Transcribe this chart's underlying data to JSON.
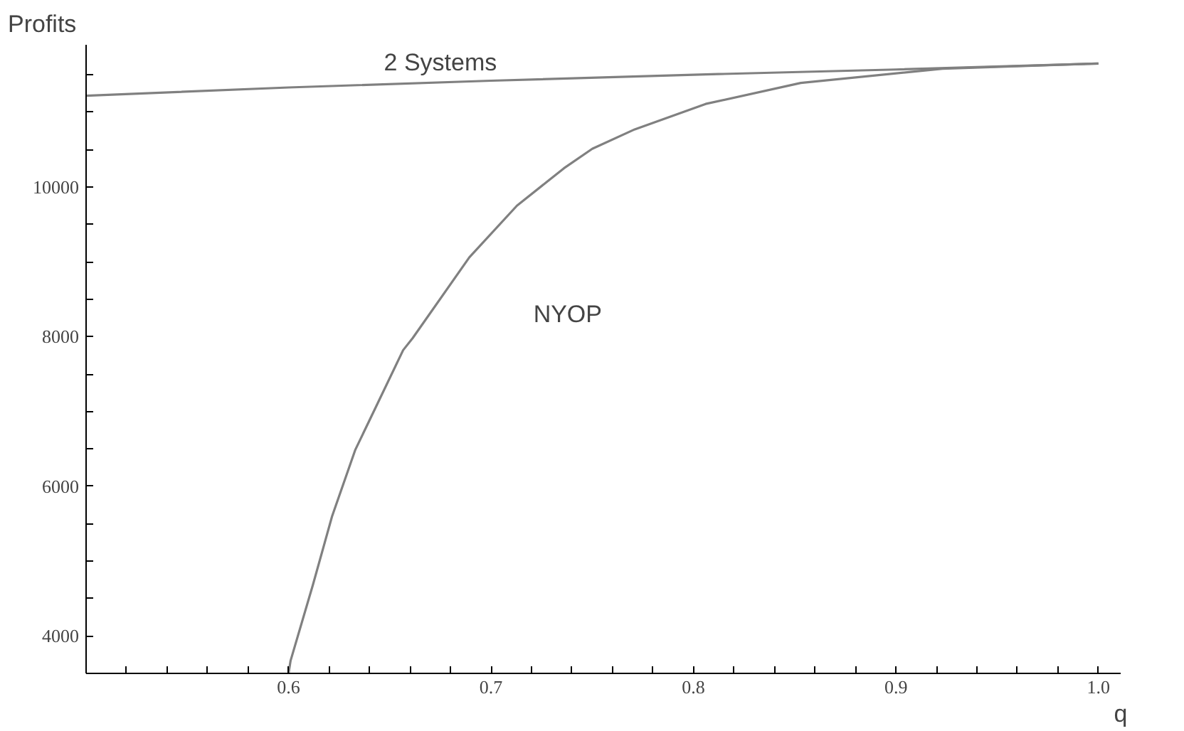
{
  "chart_data": {
    "type": "line",
    "ylabel": "Profits",
    "xlabel": "q",
    "xlim": [
      0.5,
      1.011
    ],
    "ylim": [
      3500,
      11900
    ],
    "xticks": [
      {
        "value": 0.52,
        "label": null
      },
      {
        "value": 0.54,
        "label": null
      },
      {
        "value": 0.56,
        "label": null
      },
      {
        "value": 0.58,
        "label": null
      },
      0.6,
      {
        "value": 0.62,
        "label": null
      },
      {
        "value": 0.64,
        "label": null
      },
      {
        "value": 0.66,
        "label": null
      },
      {
        "value": 0.68,
        "label": null
      },
      0.7,
      {
        "value": 0.72,
        "label": null
      },
      {
        "value": 0.74,
        "label": null
      },
      {
        "value": 0.76,
        "label": null
      },
      {
        "value": 0.78,
        "label": null
      },
      0.8,
      {
        "value": 0.82,
        "label": null
      },
      {
        "value": 0.84,
        "label": null
      },
      {
        "value": 0.86,
        "label": null
      },
      {
        "value": 0.88,
        "label": null
      },
      0.9,
      {
        "value": 0.92,
        "label": null
      },
      {
        "value": 0.94,
        "label": null
      },
      {
        "value": 0.96,
        "label": null
      },
      {
        "value": 0.98,
        "label": null
      },
      {
        "value": 1.0,
        "label": "1.0"
      }
    ],
    "yticks": [
      4000,
      {
        "value": 4500,
        "label": null
      },
      {
        "value": 5000,
        "label": null
      },
      {
        "value": 5500,
        "label": null
      },
      6000,
      {
        "value": 6500,
        "label": null
      },
      {
        "value": 7000,
        "label": null
      },
      {
        "value": 7500,
        "label": null
      },
      8000,
      {
        "value": 8500,
        "label": null
      },
      {
        "value": 9000,
        "label": null
      },
      {
        "value": 9500,
        "label": null
      },
      10000,
      {
        "value": 10500,
        "label": null
      },
      {
        "value": 11000,
        "label": null
      },
      {
        "value": 11500,
        "label": null
      }
    ],
    "grid": false,
    "marker": "none",
    "line_style": "solid",
    "series": [
      {
        "color": "#808080",
        "x": [
          0.5,
          0.6,
          0.7,
          0.8,
          0.9,
          1.0
        ],
        "values": [
          11220,
          11330,
          11420,
          11500,
          11570,
          11650
        ]
      },
      {
        "color": "#808080",
        "x": [
          0.6,
          0.601,
          0.612,
          0.6215,
          0.633,
          0.6426,
          0.6566,
          0.6613,
          0.6893,
          0.7128,
          0.736,
          0.75,
          0.771,
          0.806,
          0.853,
          0.923,
          1.0
        ],
        "values": [
          3500,
          3670,
          4680,
          5600,
          6490,
          7030,
          7820,
          7980,
          9060,
          9750,
          10250,
          10510,
          10770,
          11110,
          11390,
          11580,
          11650
        ]
      }
    ],
    "annotations": [
      "2 Systems",
      "NYOP"
    ]
  }
}
